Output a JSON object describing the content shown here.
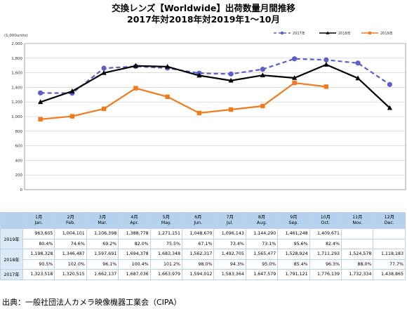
{
  "title": {
    "line1": "交換レンズ【Worldwide】出荷数量月間推移",
    "line2": "2017年対2018年対2019年1～10月"
  },
  "chart_data": {
    "type": "line",
    "ylabel": "(1,000units)",
    "ylim": [
      0,
      2000
    ],
    "yticks": [
      0,
      200,
      400,
      600,
      800,
      1000,
      1200,
      1400,
      1600,
      1800,
      2000
    ],
    "ytick_labels": [
      "0",
      "200",
      "400",
      "600",
      "800",
      "1,000",
      "1,200",
      "1,400",
      "1,600",
      "1,800",
      "2,000"
    ],
    "categories": [
      "1月 Jan.",
      "2月 Feb.",
      "3月 Mar.",
      "4月 Apr.",
      "5月 May.",
      "6月 Jun.",
      "7月 Jul.",
      "8月 Aug.",
      "9月 Sep.",
      "10月 Oct.",
      "11月 Nov.",
      "12月 Dec."
    ],
    "grid": true,
    "legend_position": "top-right",
    "series": [
      {
        "name": "2017年",
        "color": "#5b5fc7",
        "style": "dashed",
        "marker": "circle",
        "values": [
          1323.518,
          1320.515,
          1662.137,
          1687.036,
          1663.979,
          1594.012,
          1583.364,
          1647.579,
          1791.121,
          1776.139,
          1732.334,
          1438.865
        ]
      },
      {
        "name": "2018年",
        "color": "#000000",
        "style": "solid",
        "marker": "triangle",
        "values": [
          1198.328,
          1346.487,
          1597.691,
          1694.378,
          1683.348,
          1562.317,
          1492.705,
          1565.477,
          1528.924,
          1711.293,
          1524.578,
          1118.183
        ]
      },
      {
        "name": "2019年",
        "color": "#f07a1c",
        "style": "solid",
        "marker": "square",
        "values": [
          963.605,
          1004.101,
          1106.398,
          1388.778,
          1271.151,
          1048.67,
          1096.143,
          1144.29,
          1461.248,
          1409.671,
          null,
          null
        ]
      }
    ]
  },
  "table": {
    "header": [
      {
        "jp": "1月",
        "en": "Jan."
      },
      {
        "jp": "2月",
        "en": "Feb."
      },
      {
        "jp": "3月",
        "en": "Mar."
      },
      {
        "jp": "4月",
        "en": "Apr."
      },
      {
        "jp": "5月",
        "en": "May."
      },
      {
        "jp": "6月",
        "en": "Jun."
      },
      {
        "jp": "7月",
        "en": "Jul."
      },
      {
        "jp": "8月",
        "en": "Aug."
      },
      {
        "jp": "9月",
        "en": "Sep."
      },
      {
        "jp": "10月",
        "en": "Oct."
      },
      {
        "jp": "11月",
        "en": "Nov."
      },
      {
        "jp": "12月",
        "en": "Dec."
      }
    ],
    "rows": [
      {
        "year": "2019年",
        "units": [
          "963,605",
          "1,004,101",
          "1,106,398",
          "1,388,778",
          "1,271,151",
          "1,048,670",
          "1,096,143",
          "1,144,290",
          "1,461,248",
          "1,409,671",
          "",
          ""
        ],
        "pct": [
          "80.4%",
          "74.6%",
          "69.2%",
          "82.0%",
          "75.5%",
          "67.1%",
          "73.4%",
          "73.1%",
          "95.6%",
          "82.4%",
          "",
          ""
        ]
      },
      {
        "year": "2018年",
        "units": [
          "1,198,328",
          "1,346,487",
          "1,597,691",
          "1,694,378",
          "1,683,348",
          "1,562,317",
          "1,492,705",
          "1,565,477",
          "1,528,924",
          "1,711,293",
          "1,524,578",
          "1,118,183"
        ],
        "pct": [
          "90.5%",
          "102.0%",
          "96.1%",
          "100.4%",
          "101.2%",
          "98.0%",
          "94.3%",
          "95.0%",
          "85.4%",
          "96.3%",
          "88.0%",
          "77.7%"
        ]
      },
      {
        "year": "2017年",
        "units": [
          "1,323,518",
          "1,320,515",
          "1,662,137",
          "1,687,036",
          "1,663,979",
          "1,594,012",
          "1,583,364",
          "1,647,579",
          "1,791,121",
          "1,776,139",
          "1,732,334",
          "1,438,865"
        ],
        "pct": null
      }
    ]
  },
  "source": "出典：一般社団法人カメラ映像機器工業会（CIPA）"
}
